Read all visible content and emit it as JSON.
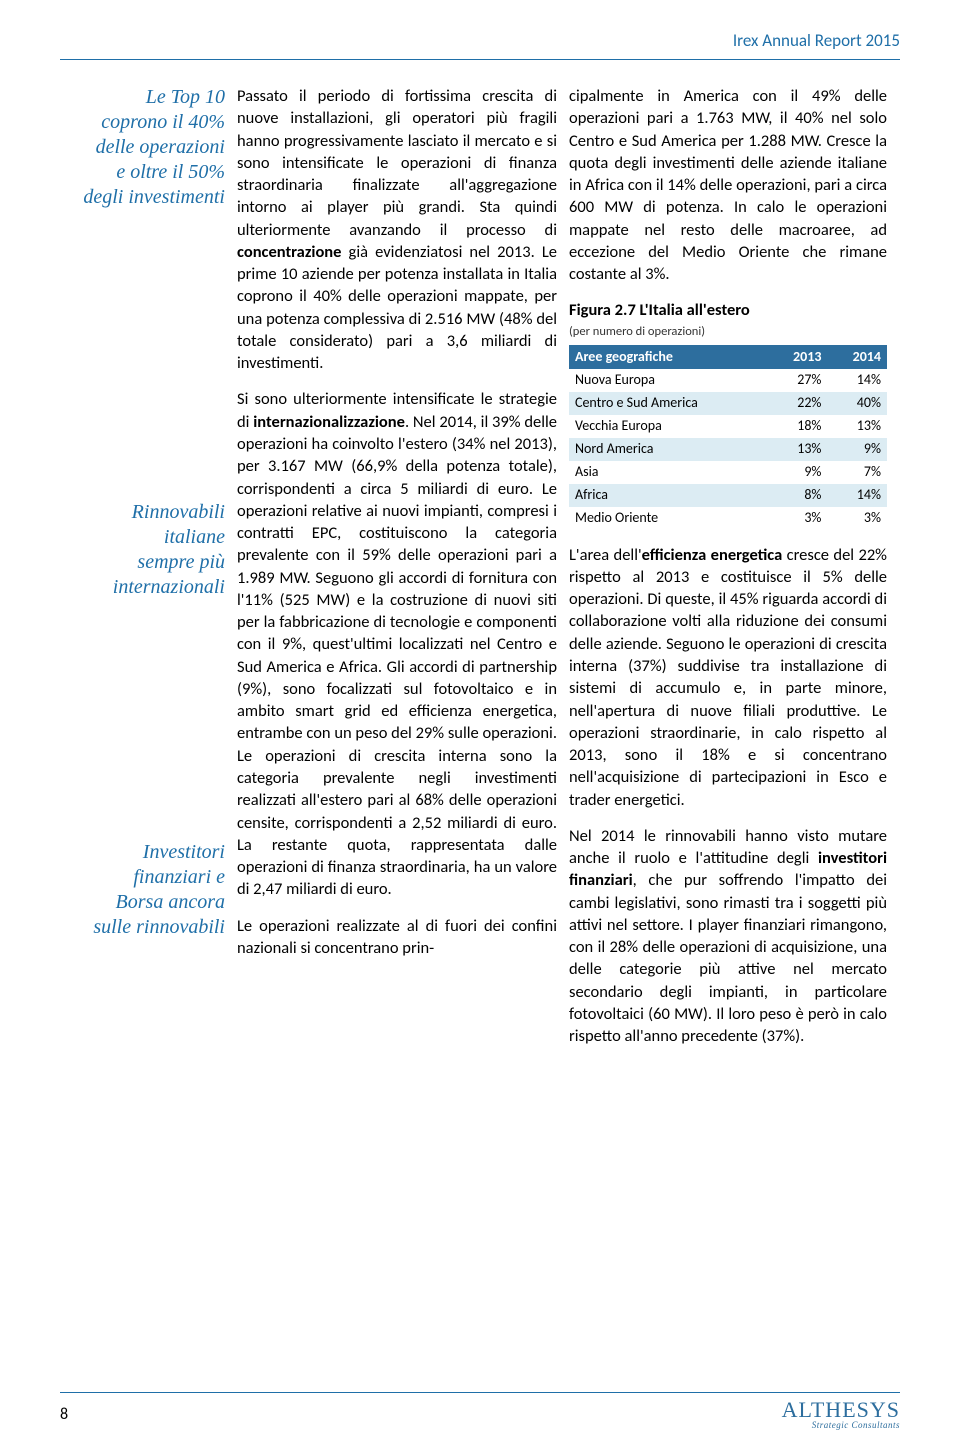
{
  "header": {
    "title": "Irex Annual Report 2015"
  },
  "pullquotes": {
    "q1_l1": "Le Top 10",
    "q1_l2": "coprono il 40%",
    "q1_l3": "delle operazioni",
    "q1_l4": "e oltre il 50%",
    "q1_l5": "degli investimenti",
    "q2_l1": "Rinnovabili",
    "q2_l2": "italiane",
    "q2_l3": "sempre più",
    "q2_l4": "internazionali",
    "q3_l1": "Investitori",
    "q3_l2": "finanziari e",
    "q3_l3": "Borsa ancora",
    "q3_l4": "sulle rinnovabili"
  },
  "mid": {
    "p1a": "Passato il periodo di fortissima crescita di nuove installazioni, gli operatori più fragili hanno progressivamente lasciato il mercato e si sono intensificate le operazioni di finanza straordinaria finalizzate all'aggregazione intorno ai player più grandi. Sta quindi ulteriormente avanzando il processo di ",
    "p1b": "concentrazione",
    "p1c": " già evidenziatosi nel 2013. Le prime 10 aziende per potenza installata in Italia coprono il 40% delle operazioni mappate, per una potenza complessiva di 2.516 MW (48% del totale considerato) pari a 3,6 miliardi di investimenti.",
    "p2a": "Si sono ulteriormente intensificate le strategie di ",
    "p2b": "internazionalizzazione",
    "p2c": ". Nel 2014, il 39% delle operazioni ha coinvolto l'estero (34% nel 2013), per 3.167 MW (66,9% della potenza totale), corrispondenti a circa 5 miliardi di euro. Le operazioni relative ai nuovi impianti, compresi i contratti EPC, costituiscono la categoria prevalente con il 59% delle operazioni pari a 1.989 MW. Seguono gli accordi di fornitura con l'11% (525 MW) e la costruzione di nuovi siti per la fabbricazione di tecnologie e componenti con il 9%, quest'ultimi localizzati nel Centro e Sud America e Africa. Gli accordi di partnership (9%), sono focalizzati sul fotovoltaico e in ambito smart grid ed efficienza energetica, entrambe con un peso del 29% sulle operazioni. Le operazioni di crescita interna sono la categoria prevalente negli investimenti realizzati all'estero pari al 68% delle operazioni censite, corrispondenti a 2,52 miliardi di euro. La restante quota, rappresentata dalle operazioni di finanza straordinaria, ha un valore di 2,47 miliardi di euro.",
    "p3": "Le operazioni realizzate al di fuori dei confini nazionali si concentrano prin-"
  },
  "right": {
    "p1": "cipalmente in America con il 49% delle operazioni pari a 1.763 MW, il 40% nel solo Centro e Sud America per 1.288 MW. Cresce la quota degli investimenti delle aziende italiane in Africa con il 14% delle operazioni, pari a circa 600 MW di potenza. In calo le operazioni mappate nel resto delle macroaree, ad eccezione del Medio Oriente che rimane costante al 3%.",
    "p2a": "L'area dell'",
    "p2b": "efficienza energetica",
    "p2c": " cresce del 22% rispetto al 2013 e costituisce il 5% delle operazioni. Di queste, il 45% riguarda accordi di collaborazione volti alla riduzione dei consumi delle aziende. Seguono le operazioni di crescita interna (37%) suddivise tra installazione di sistemi di accumulo e, in parte minore, nell'apertura di nuove filiali produttive. Le operazioni straordinarie, in calo rispetto al 2013, sono il 18% e si concentrano nell'acquisizione di partecipazioni in Esco e trader energetici.",
    "p3a": "Nel 2014 le rinnovabili hanno visto mutare anche il ruolo e l'attitudine degli ",
    "p3b": "investitori finanziari",
    "p3c": ", che pur soffrendo l'impatto dei cambi legislativi, sono rimasti tra i soggetti più attivi nel settore. I player finanziari rimangono, con il 28% delle operazioni di acquisizione, una delle categorie più attive nel mercato secondario degli impianti, in particolare fotovoltaici (60 MW). Il loro peso è però in calo rispetto all'anno precedente (37%)."
  },
  "table": {
    "title": "Figura 2.7 L'Italia all'estero",
    "subtitle": "(per numero di operazioni)",
    "header_area": "Aree geografiche",
    "header_2013": "2013",
    "header_2014": "2014",
    "rows": [
      {
        "area": "Nuova Europa",
        "v13": "27%",
        "v14": "14%"
      },
      {
        "area": "Centro e Sud America",
        "v13": "22%",
        "v14": "40%"
      },
      {
        "area": "Vecchia Europa",
        "v13": "18%",
        "v14": "13%"
      },
      {
        "area": "Nord America",
        "v13": "13%",
        "v14": "9%"
      },
      {
        "area": "Asia",
        "v13": "9%",
        "v14": "7%"
      },
      {
        "area": "Africa",
        "v13": "8%",
        "v14": "14%"
      },
      {
        "area": "Medio Oriente",
        "v13": "3%",
        "v14": "3%"
      }
    ]
  },
  "footer": {
    "page": "8",
    "logo_main": "ALTHESYS",
    "logo_sub": "Strategic Consultants"
  }
}
